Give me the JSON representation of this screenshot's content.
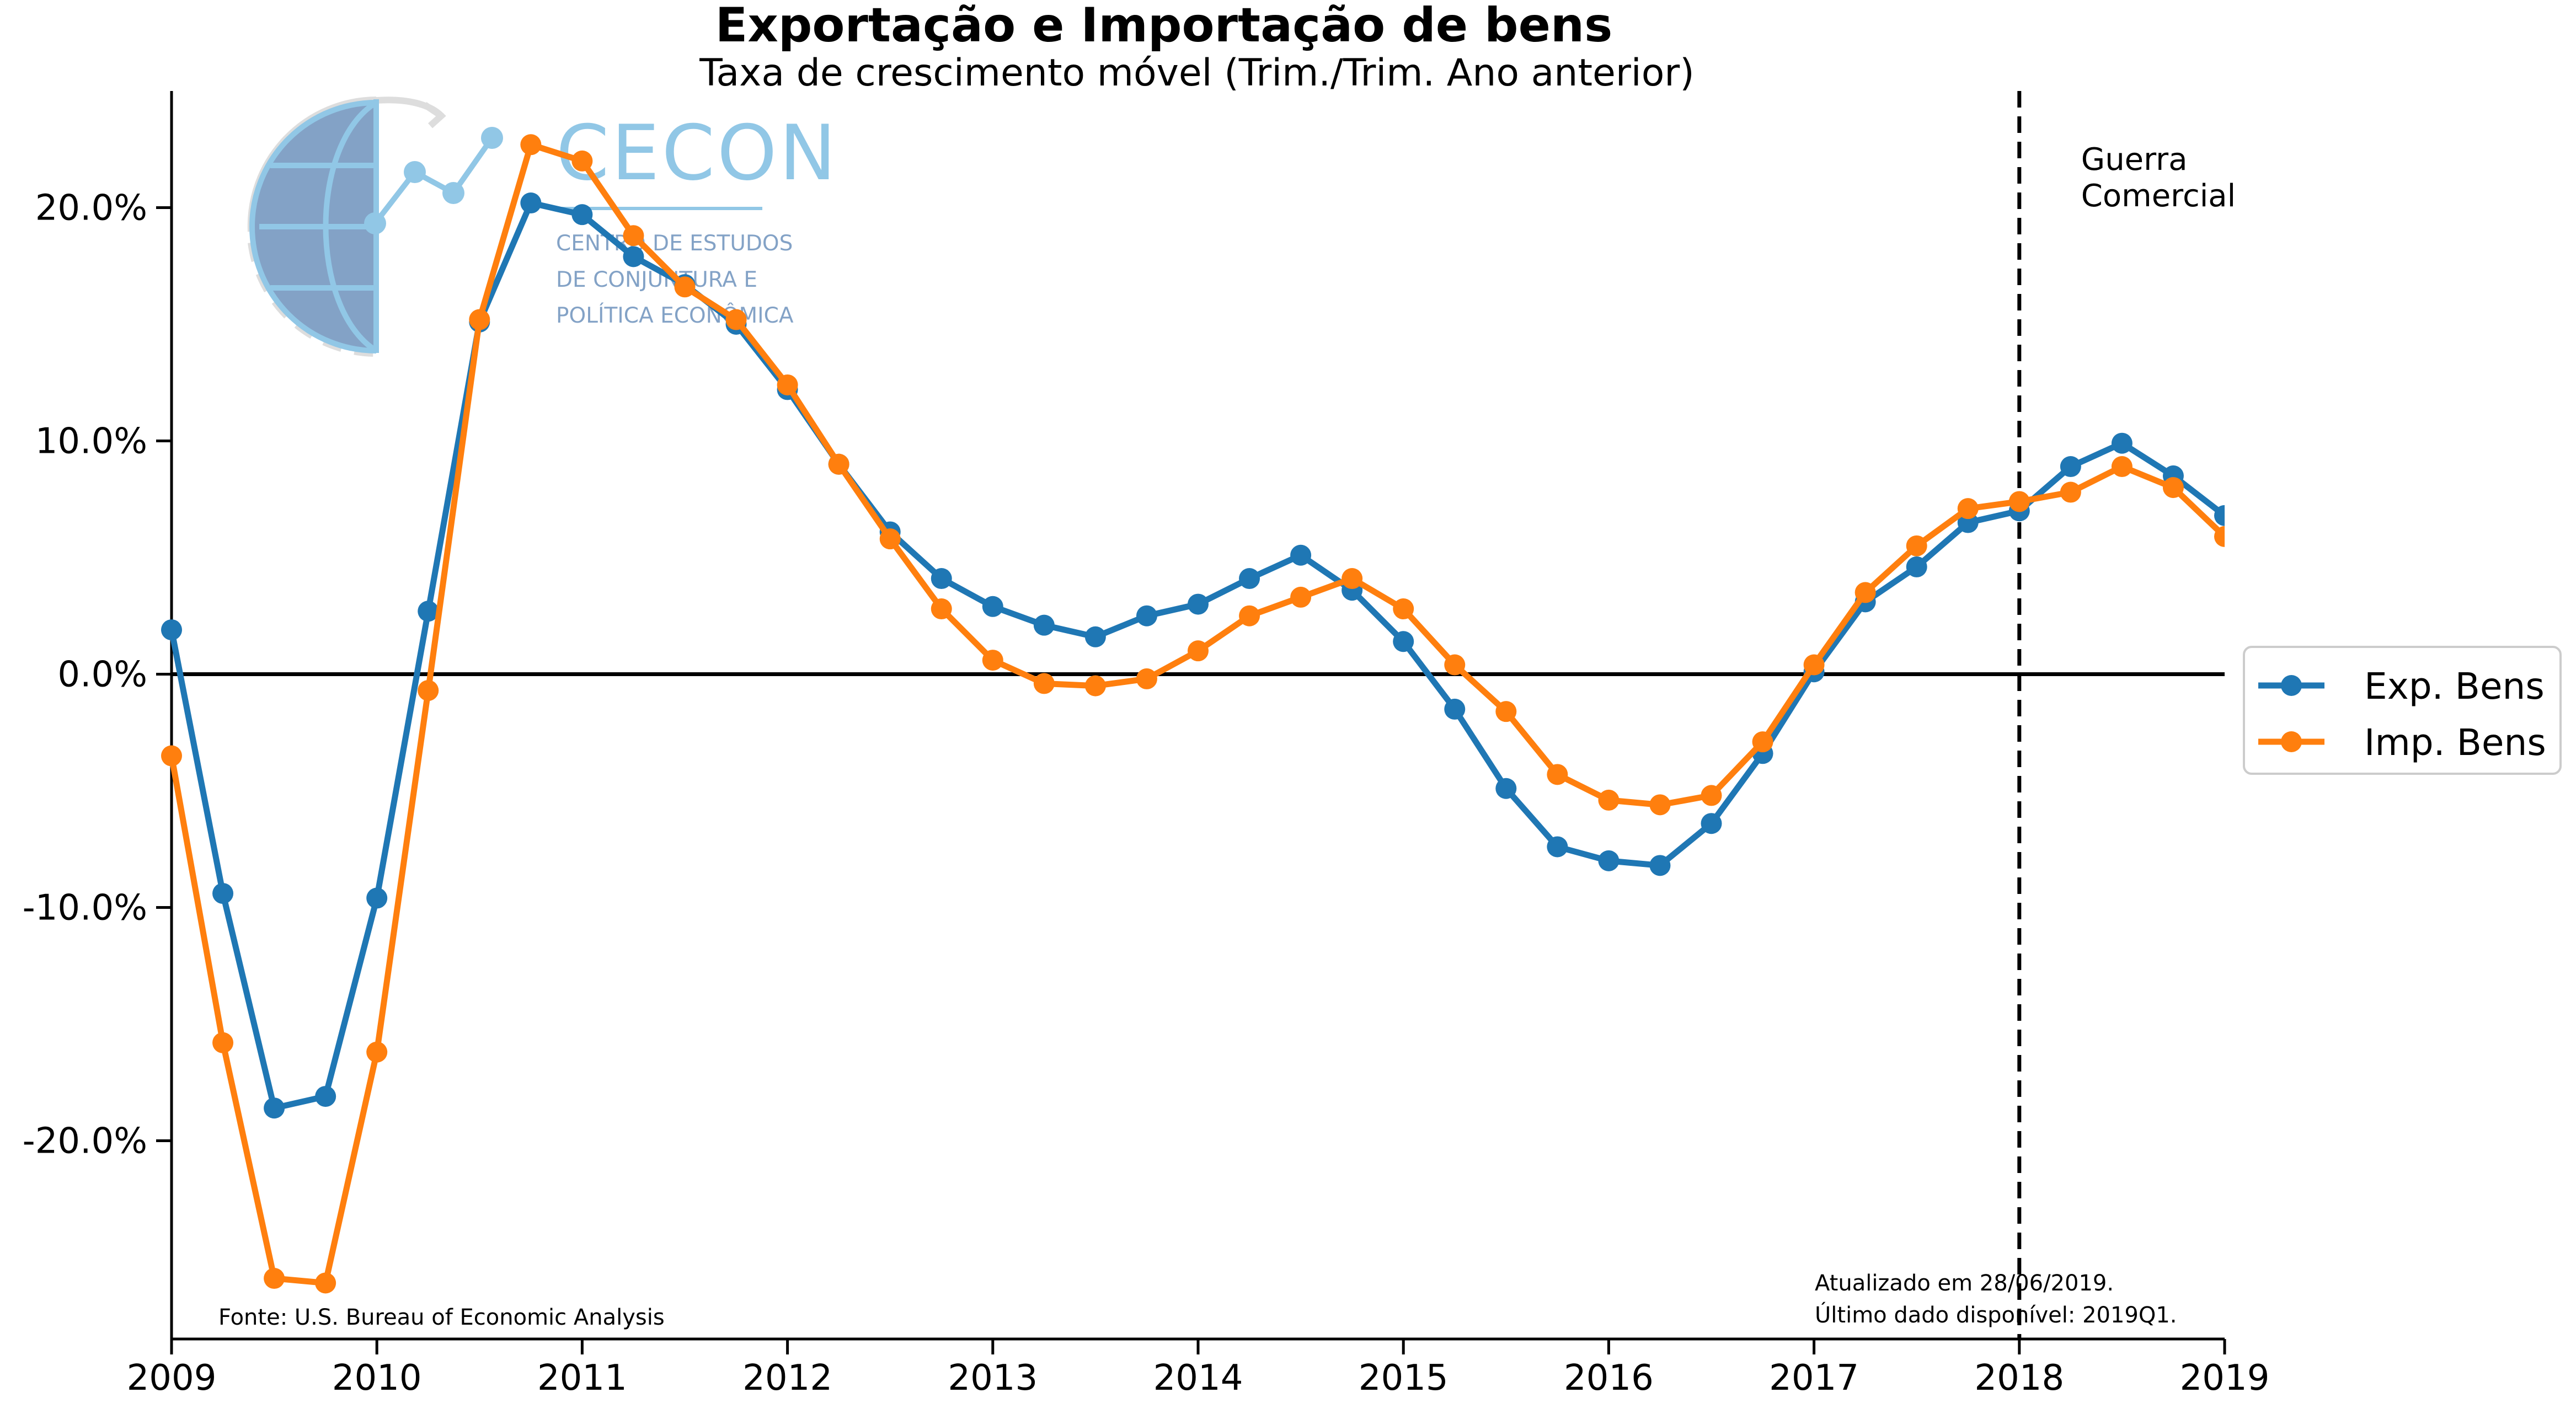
{
  "chart_data": {
    "type": "line",
    "title": "Exportação e Importação de bens",
    "subtitle": "Taxa de crescimento móvel (Trim./Trim. Ano anterior)",
    "xlabel": "",
    "ylabel": "",
    "xlim": [
      2009,
      2019
    ],
    "ylim": [
      -28.5,
      25
    ],
    "x_ticks": [
      "2009",
      "2010",
      "2011",
      "2012",
      "2013",
      "2014",
      "2015",
      "2016",
      "2017",
      "2018",
      "2019"
    ],
    "y_ticks": [
      {
        "value": 20,
        "label": "20.0%"
      },
      {
        "value": 10,
        "label": "10.0%"
      },
      {
        "value": 0,
        "label": "0.0%"
      },
      {
        "value": -10,
        "label": "-10.0%"
      },
      {
        "value": -20,
        "label": "-20.0%"
      }
    ],
    "x": [
      2009.0,
      2009.25,
      2009.5,
      2009.75,
      2010.0,
      2010.25,
      2010.5,
      2010.75,
      2011.0,
      2011.25,
      2011.5,
      2011.75,
      2012.0,
      2012.25,
      2012.5,
      2012.75,
      2013.0,
      2013.25,
      2013.5,
      2013.75,
      2014.0,
      2014.25,
      2014.5,
      2014.75,
      2015.0,
      2015.25,
      2015.5,
      2015.75,
      2016.0,
      2016.25,
      2016.5,
      2016.75,
      2017.0,
      2017.25,
      2017.5,
      2017.75,
      2018.0,
      2018.25,
      2018.5,
      2018.75,
      2019.0
    ],
    "series": [
      {
        "name": "Exp. Bens",
        "color": "#1f77b4",
        "values": [
          1.9,
          -9.4,
          -18.6,
          -18.1,
          -9.6,
          2.7,
          15.1,
          20.2,
          19.7,
          17.9,
          16.7,
          15.0,
          12.2,
          9.0,
          6.1,
          4.1,
          2.9,
          2.1,
          1.6,
          2.5,
          3.0,
          4.1,
          5.1,
          3.6,
          1.4,
          -1.5,
          -4.9,
          -7.4,
          -8.0,
          -8.2,
          -6.4,
          -3.4,
          0.1,
          3.1,
          4.6,
          6.5,
          7.0,
          8.9,
          9.9,
          8.5,
          6.8
        ]
      },
      {
        "name": "Imp. Bens",
        "color": "#ff7f0e",
        "values": [
          -3.5,
          -15.8,
          -25.9,
          -26.1,
          -16.2,
          -0.7,
          15.2,
          22.7,
          22.0,
          18.8,
          16.6,
          15.2,
          12.4,
          9.0,
          5.8,
          2.8,
          0.6,
          -0.4,
          -0.5,
          -0.2,
          1.0,
          2.5,
          3.3,
          4.1,
          2.8,
          0.4,
          -1.6,
          -4.3,
          -5.4,
          -5.6,
          -5.2,
          -2.9,
          0.4,
          3.5,
          5.5,
          7.1,
          7.4,
          7.8,
          8.9,
          8.0,
          5.9
        ]
      }
    ],
    "vline": {
      "x": 2018,
      "style": "dashed",
      "label_line1": "Guerra",
      "label_line2": "Comercial"
    },
    "hline": {
      "y": 0
    },
    "legend_position": "right",
    "grid": false,
    "source_note": "Fonte: U.S. Bureau of Economic Analysis",
    "update_note_line1": "Atualizado em 28/06/2019.",
    "update_note_line2": "Último dado disponível: 2019Q1."
  },
  "logo": {
    "text": "CECON",
    "line1": "CENTRO DE ESTUDOS",
    "line2": "DE CONJUNTURA E",
    "line3": "POLÍTICA ECONÔMICA"
  }
}
